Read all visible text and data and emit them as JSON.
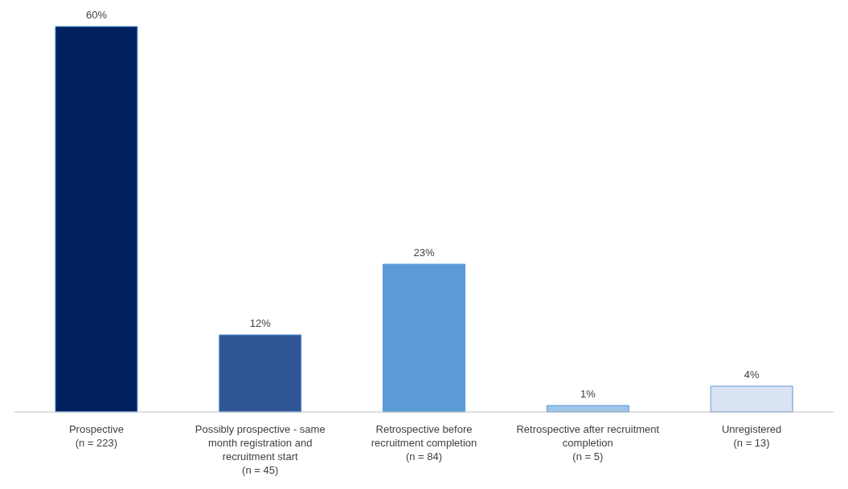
{
  "chart_data": {
    "type": "bar",
    "categories": [
      "Prospective\n(n = 223)",
      "Possibly prospective - same\nmonth registration and\nrecruitment start\n(n = 45)",
      "Retrospective before\nrecruitment completion\n(n = 84)",
      "Retrospective after recruitment\ncompletion\n(n = 5)",
      "Unregistered\n(n = 13)"
    ],
    "values": [
      60,
      12,
      23,
      1,
      4
    ],
    "value_labels": [
      "60%",
      "12%",
      "23%",
      "1%",
      "4%"
    ],
    "colors": [
      "#002060",
      "#2f5597",
      "#5b9bd5",
      "#9dc3e6",
      "#dae3f3"
    ],
    "grid": false,
    "legend": false
  }
}
